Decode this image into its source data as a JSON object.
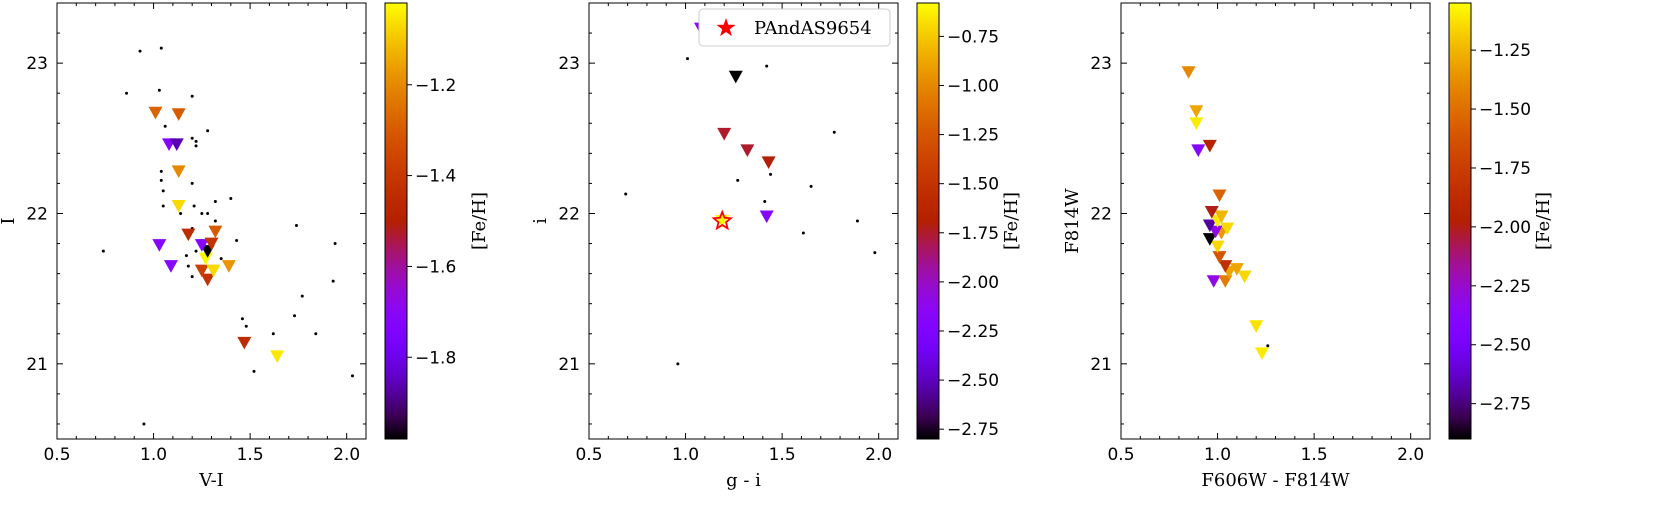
{
  "chart_data": [
    {
      "type": "scatter",
      "xlabel": "V-I",
      "ylabel": "I",
      "xlim": [
        0.5,
        2.1
      ],
      "ylim": [
        23.4,
        20.5
      ],
      "xticks": [
        "0.5",
        "1.0",
        "1.5",
        "2.0"
      ],
      "yticks": [
        "21",
        "22",
        "23"
      ],
      "colorbar": {
        "label": "[Fe/H]",
        "range": [
          -1.98,
          -1.02
        ],
        "ticks": [
          "-1.2",
          "-1.4",
          "-1.6",
          "-1.8"
        ]
      },
      "background_points": [
        [
          0.95,
          20.6
        ],
        [
          1.52,
          20.95
        ],
        [
          2.03,
          20.92
        ],
        [
          1.62,
          21.2
        ],
        [
          1.84,
          21.2
        ],
        [
          1.48,
          21.25
        ],
        [
          1.46,
          21.3
        ],
        [
          1.73,
          21.32
        ],
        [
          1.77,
          21.45
        ],
        [
          1.93,
          21.55
        ],
        [
          0.74,
          21.75
        ],
        [
          1.2,
          21.58
        ],
        [
          1.18,
          21.65
        ],
        [
          1.17,
          21.72
        ],
        [
          1.35,
          21.7
        ],
        [
          1.22,
          21.75
        ],
        [
          1.25,
          21.82
        ],
        [
          1.43,
          21.82
        ],
        [
          1.94,
          21.8
        ],
        [
          1.2,
          21.9
        ],
        [
          1.32,
          21.95
        ],
        [
          1.74,
          21.92
        ],
        [
          1.14,
          22.0
        ],
        [
          1.25,
          22.0
        ],
        [
          1.28,
          22.0
        ],
        [
          1.21,
          22.05
        ],
        [
          1.05,
          22.05
        ],
        [
          1.32,
          22.08
        ],
        [
          1.4,
          22.1
        ],
        [
          1.05,
          22.15
        ],
        [
          1.2,
          22.2
        ],
        [
          1.04,
          22.22
        ],
        [
          1.04,
          22.28
        ],
        [
          1.22,
          22.45
        ],
        [
          1.22,
          22.48
        ],
        [
          1.2,
          22.5
        ],
        [
          1.28,
          22.55
        ],
        [
          1.06,
          22.58
        ],
        [
          1.2,
          22.78
        ],
        [
          0.86,
          22.8
        ],
        [
          1.03,
          22.82
        ],
        [
          0.93,
          23.08
        ],
        [
          1.04,
          23.1
        ]
      ],
      "points": [
        {
          "x": 1.64,
          "y": 21.05,
          "feh": -1.05
        },
        {
          "x": 1.47,
          "y": 21.14,
          "feh": -1.45
        },
        {
          "x": 1.28,
          "y": 21.56,
          "feh": -1.42
        },
        {
          "x": 1.25,
          "y": 21.62,
          "feh": -1.38
        },
        {
          "x": 1.31,
          "y": 21.62,
          "feh": -1.07
        },
        {
          "x": 1.09,
          "y": 21.65,
          "feh": -1.72
        },
        {
          "x": 1.39,
          "y": 21.65,
          "feh": -1.18
        },
        {
          "x": 1.27,
          "y": 21.7,
          "feh": -1.03
        },
        {
          "x": 1.28,
          "y": 21.75,
          "feh": -1.98
        },
        {
          "x": 1.03,
          "y": 21.79,
          "feh": -1.72
        },
        {
          "x": 1.25,
          "y": 21.79,
          "feh": -1.72
        },
        {
          "x": 1.3,
          "y": 21.8,
          "feh": -1.42
        },
        {
          "x": 1.18,
          "y": 21.86,
          "feh": -1.45
        },
        {
          "x": 1.32,
          "y": 21.88,
          "feh": -1.3
        },
        {
          "x": 1.13,
          "y": 22.05,
          "feh": -1.07
        },
        {
          "x": 1.13,
          "y": 22.28,
          "feh": -1.2
        },
        {
          "x": 1.08,
          "y": 22.46,
          "feh": -1.72
        },
        {
          "x": 1.12,
          "y": 22.46,
          "feh": -1.86
        },
        {
          "x": 1.01,
          "y": 22.67,
          "feh": -1.28
        },
        {
          "x": 1.13,
          "y": 22.66,
          "feh": -1.3
        }
      ]
    },
    {
      "type": "scatter",
      "xlabel": "g - i",
      "ylabel": "i",
      "xlim": [
        0.5,
        2.1
      ],
      "ylim": [
        23.4,
        20.5
      ],
      "xticks": [
        "0.5",
        "1.0",
        "1.5",
        "2.0"
      ],
      "yticks": [
        "21",
        "22",
        "23"
      ],
      "legend": {
        "label": "PAndAS9654",
        "placement": "top-right"
      },
      "star": {
        "x": 1.19,
        "y": 21.95
      },
      "colorbar": {
        "label": "[Fe/H]",
        "range": [
          -2.8,
          -0.58
        ],
        "ticks": [
          "-0.75",
          "-1.00",
          "-1.25",
          "-1.50",
          "-1.75",
          "-2.00",
          "-2.25",
          "-2.50",
          "-2.75"
        ]
      },
      "background_points": [
        [
          0.96,
          21.0
        ],
        [
          1.98,
          21.74
        ],
        [
          1.61,
          21.87
        ],
        [
          1.89,
          21.95
        ],
        [
          0.69,
          22.13
        ],
        [
          1.65,
          22.18
        ],
        [
          1.27,
          22.22
        ],
        [
          1.44,
          22.26
        ],
        [
          1.77,
          22.54
        ],
        [
          1.41,
          22.08
        ],
        [
          1.01,
          23.03
        ],
        [
          1.42,
          22.98
        ]
      ],
      "points": [
        {
          "x": 1.19,
          "y": 21.95,
          "feh": -0.6
        },
        {
          "x": 1.42,
          "y": 21.98,
          "feh": -2.2
        },
        {
          "x": 1.43,
          "y": 22.34,
          "feh": -1.7
        },
        {
          "x": 1.32,
          "y": 22.42,
          "feh": -1.75
        },
        {
          "x": 1.2,
          "y": 22.53,
          "feh": -1.75
        },
        {
          "x": 1.26,
          "y": 22.91,
          "feh": -2.8
        },
        {
          "x": 1.08,
          "y": 23.23,
          "feh": -2.2
        }
      ]
    },
    {
      "type": "scatter",
      "xlabel": "F606W - F814W",
      "ylabel": "F814W",
      "xlim": [
        0.5,
        2.1
      ],
      "ylim": [
        23.4,
        20.5
      ],
      "xticks": [
        "0.5",
        "1.0",
        "1.5",
        "2.0"
      ],
      "yticks": [
        "21",
        "22",
        "23"
      ],
      "colorbar": {
        "label": "[Fe/H]",
        "range": [
          -2.9,
          -1.05
        ],
        "ticks": [
          "-1.25",
          "-1.50",
          "-1.75",
          "-2.00",
          "-2.25",
          "-2.50",
          "-2.75"
        ]
      },
      "background_points": [
        [
          1.26,
          21.12
        ]
      ],
      "points": [
        {
          "x": 1.23,
          "y": 21.07,
          "feh": -1.1
        },
        {
          "x": 1.2,
          "y": 21.25,
          "feh": -1.12
        },
        {
          "x": 0.98,
          "y": 21.55,
          "feh": -2.3
        },
        {
          "x": 1.04,
          "y": 21.55,
          "feh": -1.45
        },
        {
          "x": 1.14,
          "y": 21.58,
          "feh": -1.15
        },
        {
          "x": 1.06,
          "y": 21.61,
          "feh": -1.3
        },
        {
          "x": 1.1,
          "y": 21.63,
          "feh": -1.3
        },
        {
          "x": 1.04,
          "y": 21.65,
          "feh": -1.85
        },
        {
          "x": 1.01,
          "y": 21.71,
          "feh": -1.62
        },
        {
          "x": 1.0,
          "y": 21.78,
          "feh": -1.15
        },
        {
          "x": 0.96,
          "y": 21.83,
          "feh": -2.9
        },
        {
          "x": 1.02,
          "y": 21.87,
          "feh": -1.35
        },
        {
          "x": 0.99,
          "y": 21.88,
          "feh": -2.3
        },
        {
          "x": 1.05,
          "y": 21.9,
          "feh": -1.15
        },
        {
          "x": 0.96,
          "y": 21.92,
          "feh": -2.7
        },
        {
          "x": 1.0,
          "y": 21.95,
          "feh": -1.1
        },
        {
          "x": 1.02,
          "y": 21.98,
          "feh": -1.25
        },
        {
          "x": 0.97,
          "y": 22.01,
          "feh": -2.0
        },
        {
          "x": 1.01,
          "y": 22.12,
          "feh": -1.55
        },
        {
          "x": 0.9,
          "y": 22.42,
          "feh": -2.4
        },
        {
          "x": 0.96,
          "y": 22.45,
          "feh": -1.95
        },
        {
          "x": 0.89,
          "y": 22.6,
          "feh": -1.1
        },
        {
          "x": 0.89,
          "y": 22.68,
          "feh": -1.3
        },
        {
          "x": 0.85,
          "y": 22.94,
          "feh": -1.4
        }
      ]
    }
  ]
}
